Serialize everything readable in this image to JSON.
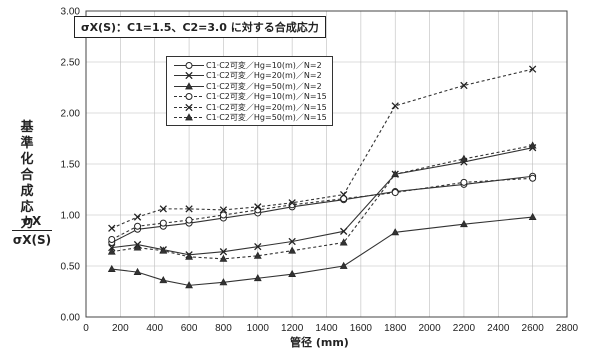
{
  "chart_data": {
    "type": "line",
    "title": "σX(S)：C1=1.5、C2=3.0 に対する合成応力",
    "ylabel_chars": [
      "基",
      "準",
      "化",
      "合",
      "成",
      "応",
      "力"
    ],
    "ylabel_numerator": "σX",
    "ylabel_denominator": "σX(S)",
    "xlabel": "管径 (mm)",
    "xlim": [
      0,
      2800
    ],
    "ylim": [
      0,
      3.0
    ],
    "x_ticks": [
      "0",
      "200",
      "400",
      "600",
      "800",
      "1000",
      "1200",
      "1400",
      "1600",
      "1800",
      "2000",
      "2200",
      "2400",
      "2600",
      "2800"
    ],
    "y_ticks": [
      "0.00",
      "0.50",
      "1.00",
      "1.50",
      "2.00",
      "2.50",
      "3.00"
    ],
    "grid": true,
    "legend_position": "top-left",
    "x": [
      150,
      300,
      450,
      600,
      800,
      1000,
      1200,
      1500,
      1800,
      2200,
      2600
    ],
    "series": [
      {
        "name": "C1·C2可変／Hg=10(m)／N=2",
        "style": "solid",
        "marker": "circle",
        "values": [
          0.73,
          0.86,
          0.89,
          0.92,
          0.97,
          1.02,
          1.08,
          1.15,
          1.23,
          1.3,
          1.38
        ]
      },
      {
        "name": "C1·C2可変／Hg=20(m)／N=2",
        "style": "solid",
        "marker": "x",
        "values": [
          0.68,
          0.71,
          0.66,
          0.61,
          0.64,
          0.69,
          0.74,
          0.84,
          1.4,
          1.52,
          1.66
        ]
      },
      {
        "name": "C1·C2可変／Hg=50(m)／N=2",
        "style": "solid",
        "marker": "triangle",
        "values": [
          0.47,
          0.44,
          0.36,
          0.31,
          0.34,
          0.38,
          0.42,
          0.5,
          0.83,
          0.91,
          0.98
        ]
      },
      {
        "name": "C1·C2可変／Hg=10(m)／N=15",
        "style": "dashed",
        "marker": "circle",
        "values": [
          0.76,
          0.89,
          0.92,
          0.95,
          1.0,
          1.05,
          1.1,
          1.16,
          1.22,
          1.32,
          1.36
        ]
      },
      {
        "name": "C1·C2可変／Hg=20(m)／N=15",
        "style": "dashed",
        "marker": "x",
        "values": [
          0.87,
          0.98,
          1.06,
          1.06,
          1.05,
          1.08,
          1.12,
          1.2,
          2.07,
          2.27,
          2.43
        ]
      },
      {
        "name": "C1·C2可変／Hg=50(m)／N=15",
        "style": "dashed",
        "marker": "triangle",
        "values": [
          0.64,
          0.68,
          0.65,
          0.59,
          0.57,
          0.6,
          0.65,
          0.73,
          1.4,
          1.55,
          1.68
        ]
      }
    ]
  }
}
